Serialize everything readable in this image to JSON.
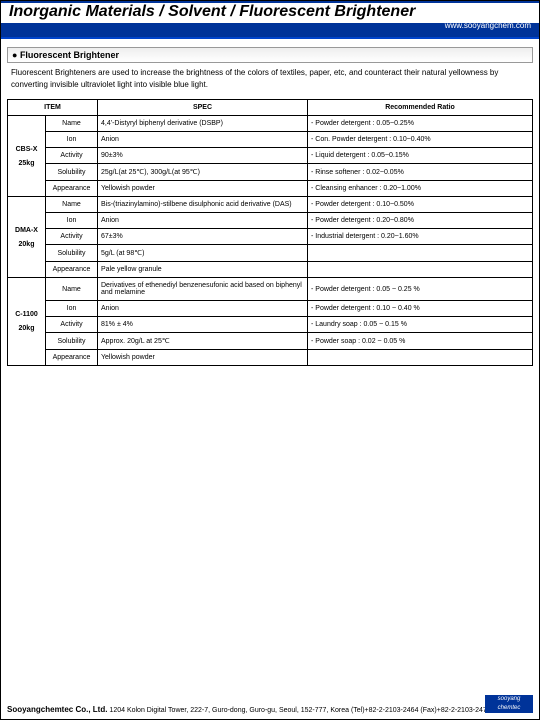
{
  "header": {
    "title": "Inorganic Materials / Solvent / Fluorescent Brightener",
    "url": "www.sooyangchem.com"
  },
  "section": {
    "heading": "Fluorescent Brightener",
    "description": "Fluorescent Brighteners are used to increase the brightness of the colors of textiles, paper, etc, and counteract their natural yellowness by converting invisible ultraviolet light into visible blue light."
  },
  "table": {
    "headers": {
      "item": "ITEM",
      "spec": "SPEC",
      "ratio": "Recommended Ratio"
    },
    "rows": [
      {
        "item": "CBS-X",
        "prop": "Name",
        "spec": "4,4'-Distyryl biphenyl derivative (DSBP)",
        "ratio": "- Powder detergent : 0.05~0.25%"
      },
      {
        "item": "25kg",
        "prop": "Ion",
        "spec": "Anion",
        "ratio": "- Con. Powder detergent : 0.10~0.40%"
      },
      {
        "item": "",
        "prop": "Activity",
        "spec": "90±3%",
        "ratio": "- Liquid detergent : 0.05~0.15%"
      },
      {
        "item": "",
        "prop": "Solubility",
        "spec": "25g/L(at 25℃), 300g/L(at 95℃)",
        "ratio": "- Rinse softener : 0.02~0.05%"
      },
      {
        "item": "",
        "prop": "Appearance",
        "spec": "Yellowish powder",
        "ratio": "- Cleansing enhancer : 0.20~1.00%"
      },
      {
        "item": "DMA-X",
        "prop": "Name",
        "spec": "Bis-(triazinylamino)-stilbene disulphonic acid derivative (DAS)",
        "ratio": "- Powder detergent : 0.10~0.50%"
      },
      {
        "item": "20kg",
        "prop": "Ion",
        "spec": "Anion",
        "ratio": "- Powder detergent : 0.20~0.80%"
      },
      {
        "item": "",
        "prop": "Activity",
        "spec": "67±3%",
        "ratio": "- Industrial detergent : 0.20~1.60%"
      },
      {
        "item": "",
        "prop": "Solubility",
        "spec": "5g/L (at 98℃)",
        "ratio": ""
      },
      {
        "item": "",
        "prop": "Appearance",
        "spec": "Pale yellow granule",
        "ratio": ""
      },
      {
        "item": "C-1100",
        "prop": "Name",
        "spec": "Derivatives of ethenediyl benzenesufonic acid based on biphenyl and melamine",
        "ratio": "- Powder detergent : 0.05 ~ 0.25 %"
      },
      {
        "item": "20kg",
        "prop": "Ion",
        "spec": "Anion",
        "ratio": "- Powder detergent : 0.10 ~ 0.40 %"
      },
      {
        "item": "",
        "prop": "Activity",
        "spec": "81% ± 4%",
        "ratio": "- Laundry soap : 0.05 ~ 0.15 %"
      },
      {
        "item": "",
        "prop": "Solubility",
        "spec": "Approx. 20g/L at 25℃",
        "ratio": "- Powder soap : 0.02 ~ 0.05 %"
      },
      {
        "item": "",
        "prop": "Appearance",
        "spec": "Yellowish powder",
        "ratio": ""
      }
    ]
  },
  "footer": {
    "company": "Sooyangchemtec Co., Ltd.",
    "address": "1204 Kolon Digital Tower, 222-7, Guro-dong, Guro-gu, Seoul, 152-777, Korea  (Tel)+82-2-2103-2464 (Fax)+82-2-2103-2476",
    "logo1": "sooyang",
    "logo2": "chemtec"
  }
}
